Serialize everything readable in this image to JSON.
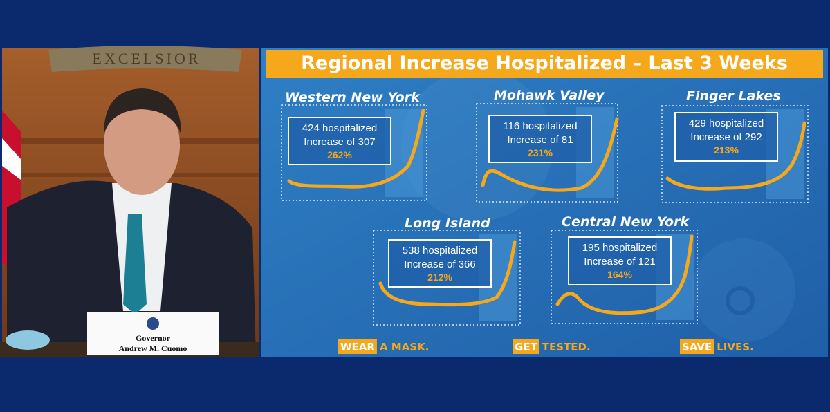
{
  "left_panel": {
    "seal_text": "EXCELSIOR",
    "nameplate": [
      "Governor",
      "Andrew M. Cuomo"
    ]
  },
  "slide": {
    "title": "Regional Increase Hospitalized – Last 3 Weeks",
    "regions": [
      {
        "name": "Western New York",
        "hospitalized": "424 hospitalized",
        "increase": "Increase of 307",
        "percent": "262%"
      },
      {
        "name": "Mohawk Valley",
        "hospitalized": "116 hospitalized",
        "increase": "Increase of 81",
        "percent": "231%"
      },
      {
        "name": "Finger Lakes",
        "hospitalized": "429 hospitalized",
        "increase": "Increase of 292",
        "percent": "213%"
      },
      {
        "name": "Long Island",
        "hospitalized": "538 hospitalized",
        "increase": "Increase of 366",
        "percent": "212%"
      },
      {
        "name": "Central New York",
        "hospitalized": "195 hospitalized",
        "increase": "Increase of 121",
        "percent": "164%"
      }
    ],
    "footer": [
      {
        "highlight": "WEAR",
        "text": "A MASK."
      },
      {
        "highlight": "GET",
        "text": "TESTED."
      },
      {
        "highlight": "SAVE",
        "text": "LIVES."
      }
    ]
  }
}
